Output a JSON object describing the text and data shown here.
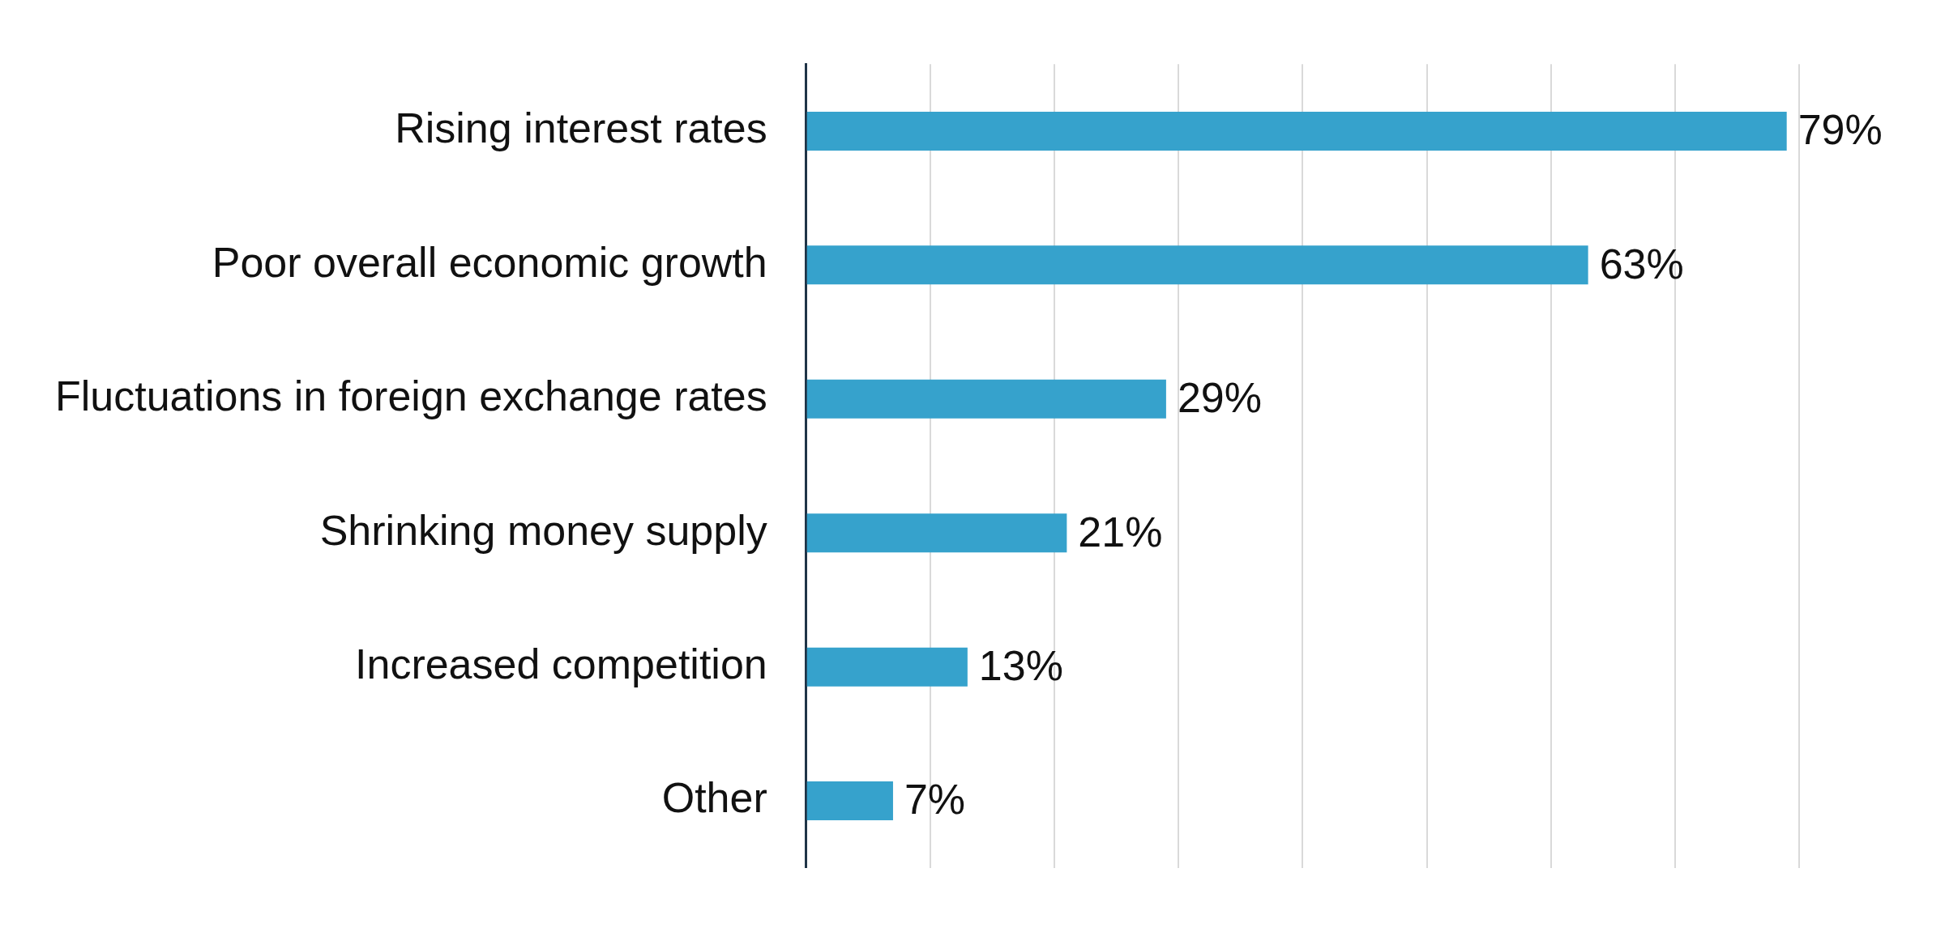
{
  "chart_data": {
    "type": "bar",
    "orientation": "horizontal",
    "categories": [
      "Rising interest rates",
      "Poor overall economic growth",
      "Fluctuations in foreign exchange rates",
      "Shrinking money supply",
      "Increased competition",
      "Other"
    ],
    "values": [
      79,
      63,
      29,
      21,
      13,
      7
    ],
    "value_labels": [
      "79%",
      "63%",
      "29%",
      "21%",
      "13%",
      "7%"
    ],
    "color": "#36a2cc",
    "xlim": [
      0,
      80
    ],
    "xticks": [
      {
        "value": 0,
        "label": null
      },
      {
        "value": 10,
        "label": null
      },
      {
        "value": 20,
        "label": null
      },
      {
        "value": 30,
        "label": null
      },
      {
        "value": 40,
        "label": null
      },
      {
        "value": 50,
        "label": null
      },
      {
        "value": 60,
        "label": null
      },
      {
        "value": 70,
        "label": null
      },
      {
        "value": 80,
        "label": null
      }
    ],
    "grid": "x",
    "tick_labels": "y",
    "legend": false
  }
}
